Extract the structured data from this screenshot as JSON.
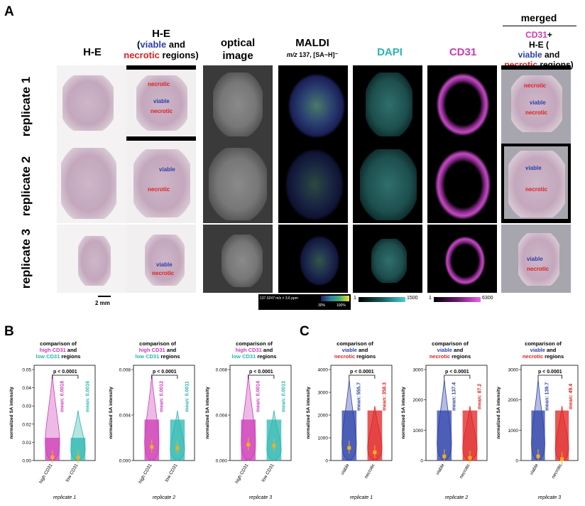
{
  "panels": {
    "a": "A",
    "b": "B",
    "c": "C"
  },
  "merged_header": "merged",
  "columns": [
    {
      "id": "he1",
      "title": "H-E"
    },
    {
      "id": "he2",
      "title_line1": "H-E",
      "title_open": "(",
      "viable": "viable",
      "and": " and",
      "necrotic": "necrotic",
      "regions": " regions)"
    },
    {
      "id": "opt",
      "title_line1": "optical",
      "title_line2": "image"
    },
    {
      "id": "maldi",
      "title_line1": "MALDI",
      "mz_italic": "m/z",
      "mz_rest": " 137, [SA−H]⁻"
    },
    {
      "id": "dapi",
      "title": "DAPI"
    },
    {
      "id": "cd31",
      "title": "CD31"
    },
    {
      "id": "merged",
      "line1_cd31": "CD31",
      "line1_plus": "+",
      "line2": "H-E (",
      "viable": "viable",
      "and": " and",
      "necrotic": "necrotic",
      "regions": " regions)"
    }
  ],
  "rows": [
    "replicate 1",
    "replicate 2",
    "replicate 3"
  ],
  "region_labels": {
    "viable": "viable",
    "necrotic": "necrotic"
  },
  "scale_bar": "2 mm",
  "maldi_scale": {
    "label": "137.0247 m/z ± 3.6 ppm",
    "low": "30%",
    "high": "100%"
  },
  "dapi_scale": {
    "min": "1",
    "max": "1500"
  },
  "cd31_scale": {
    "min": "1",
    "max": "6300"
  },
  "colors": {
    "magenta": "#cc3ab6",
    "teal": "#2ab5b0",
    "viable": "#2b3fa8",
    "necrotic": "#e02020"
  },
  "chart_data": [
    {
      "type": "violin",
      "panel": "B",
      "title_line1": "comparison of",
      "title_hi": "high CD31",
      "title_and": " and",
      "title_lo": "low CD31",
      "title_end": " regions",
      "ylabel": "normalized SA intensity",
      "ylim": [
        0,
        0.05
      ],
      "yticks": [
        "0.00",
        "0.01",
        "0.02",
        "0.03",
        "0.04",
        "0.05"
      ],
      "categories": [
        "high CD31",
        "low CD31"
      ],
      "means": [
        0.0018,
        0.0016
      ],
      "mean_labels": [
        "mean: 0.0018",
        "mean: 0.0016"
      ],
      "pvalue": "p < 0.0001",
      "xlabel": "replicate 1"
    },
    {
      "type": "violin",
      "panel": "B",
      "title_line1": "comparison of",
      "title_hi": "high CD31",
      "title_and": " and",
      "title_lo": "low CD31",
      "title_end": " regions",
      "ylabel": "normalized SA intensity",
      "ylim": [
        0,
        0.008
      ],
      "yticks": [
        "0.000",
        "0.004",
        "0.008"
      ],
      "categories": [
        "high CD31",
        "low CD31"
      ],
      "means": [
        0.0012,
        0.0011
      ],
      "mean_labels": [
        "mean: 0.0012",
        "mean: 0.0011"
      ],
      "pvalue": "p < 0.0001",
      "xlabel": "replicate 2"
    },
    {
      "type": "violin",
      "panel": "B",
      "title_line1": "comparison of",
      "title_hi": "high CD31",
      "title_and": " and",
      "title_lo": "low CD31",
      "title_end": " regions",
      "ylabel": "normalized SA intensity",
      "ylim": [
        0,
        0.008
      ],
      "yticks": [
        "0.000",
        "0.004",
        "0.008"
      ],
      "categories": [
        "high CD31",
        "low CD31"
      ],
      "means": [
        0.0014,
        0.0013
      ],
      "mean_labels": [
        "mean: 0.0014",
        "mean: 0.0013"
      ],
      "pvalue": "p < 0.0001",
      "xlabel": "replicate 3"
    },
    {
      "type": "violin",
      "panel": "C",
      "title_line1": "comparison of",
      "title_v": "viable",
      "title_and": " and",
      "title_n": "necrotic",
      "title_end": " regions",
      "ylabel": "normalized SA intensity",
      "ylim": [
        0,
        4000
      ],
      "yticks": [
        "0",
        "1000",
        "2000",
        "3000",
        "4000"
      ],
      "categories": [
        "viable",
        "necrotic"
      ],
      "means": [
        555.7,
        358.3
      ],
      "mean_labels": [
        "mean: 555.7",
        "mean: 358.3"
      ],
      "pvalue": "p < 0.0001",
      "xlabel": "replicate 1"
    },
    {
      "type": "violin",
      "panel": "C",
      "title_line1": "comparison of",
      "title_v": "viable",
      "title_and": " and",
      "title_n": "necrotic",
      "title_end": " regions",
      "ylabel": "normalized SA intensity",
      "ylim": [
        0,
        3000
      ],
      "yticks": [
        "0",
        "1000",
        "2000",
        "3000"
      ],
      "categories": [
        "viable",
        "necrotic"
      ],
      "means": [
        137.4,
        87.2
      ],
      "mean_labels": [
        "mean: 137.4",
        "mean: 87.2"
      ],
      "pvalue": "p < 0.0001",
      "xlabel": "replicate 2"
    },
    {
      "type": "violin",
      "panel": "C",
      "title_line1": "comparison of",
      "title_v": "viable",
      "title_and": " and",
      "title_n": "necrotic",
      "title_end": " regions",
      "ylabel": "normalized SA intensity",
      "ylim": [
        0,
        3000
      ],
      "yticks": [
        "0",
        "1000",
        "2000",
        "3000"
      ],
      "categories": [
        "viable",
        "necrotic"
      ],
      "means": [
        139.7,
        49.4
      ],
      "mean_labels": [
        "mean: 139.7",
        "mean: 49.4"
      ],
      "pvalue": "p < 0.0001",
      "xlabel": "replicate 3"
    }
  ]
}
